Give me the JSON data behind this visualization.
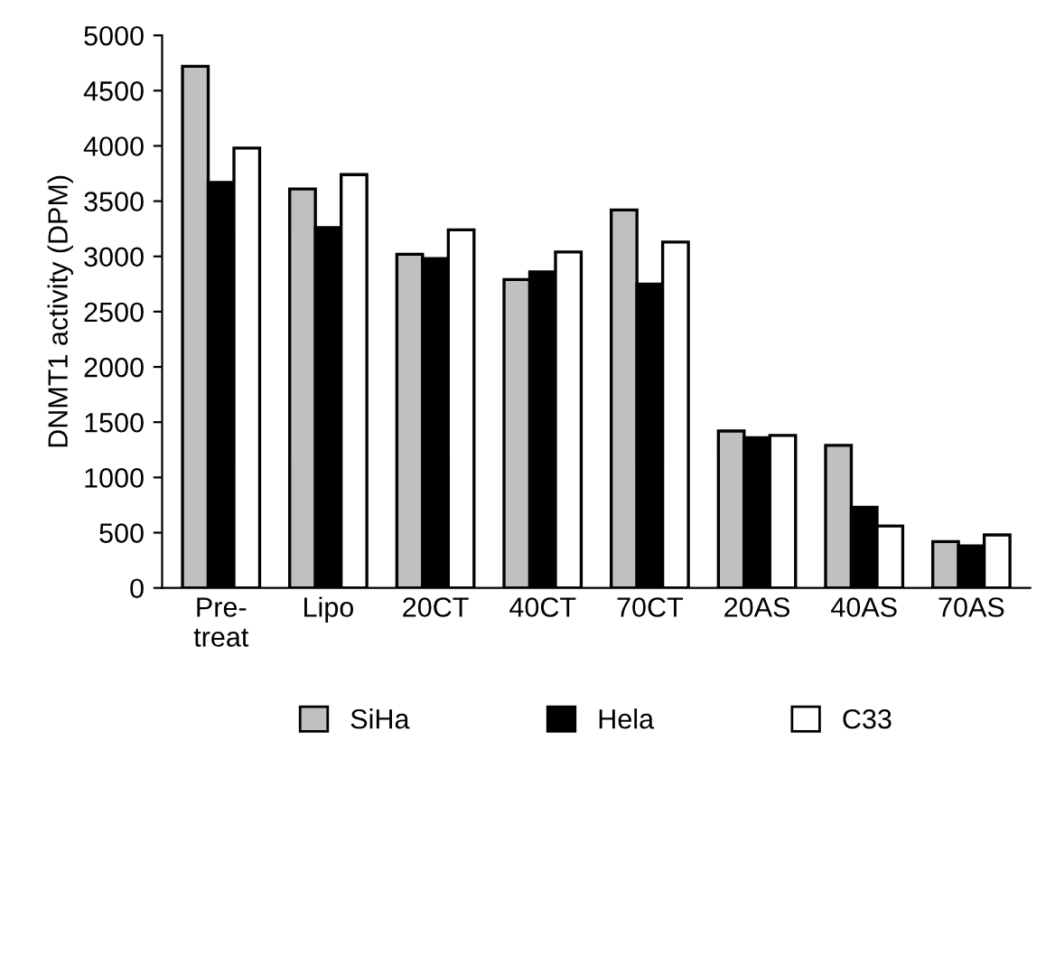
{
  "chart_data": {
    "type": "bar",
    "ylabel": "DNMT1 activity (DPM)",
    "categories": [
      "Pre-\ntreat",
      "Lipo",
      "20CT",
      "40CT",
      "70CT",
      "20AS",
      "40AS",
      "70AS"
    ],
    "series": [
      {
        "name": "SiHa",
        "color": "#c0c0c0",
        "values": [
          4720,
          3610,
          3020,
          2790,
          3420,
          1420,
          1290,
          420
        ]
      },
      {
        "name": "Hela",
        "color": "#000000",
        "values": [
          3670,
          3260,
          2980,
          2860,
          2750,
          1360,
          730,
          380
        ]
      },
      {
        "name": "C33",
        "color": "#ffffff",
        "values": [
          3980,
          3740,
          3240,
          3040,
          3130,
          1380,
          560,
          480
        ]
      }
    ],
    "ylim": [
      0,
      5000
    ],
    "yticks": [
      0,
      500,
      1000,
      1500,
      2000,
      2500,
      3000,
      3500,
      4000,
      4500,
      5000
    ],
    "grid": false,
    "legend": "bottom"
  }
}
